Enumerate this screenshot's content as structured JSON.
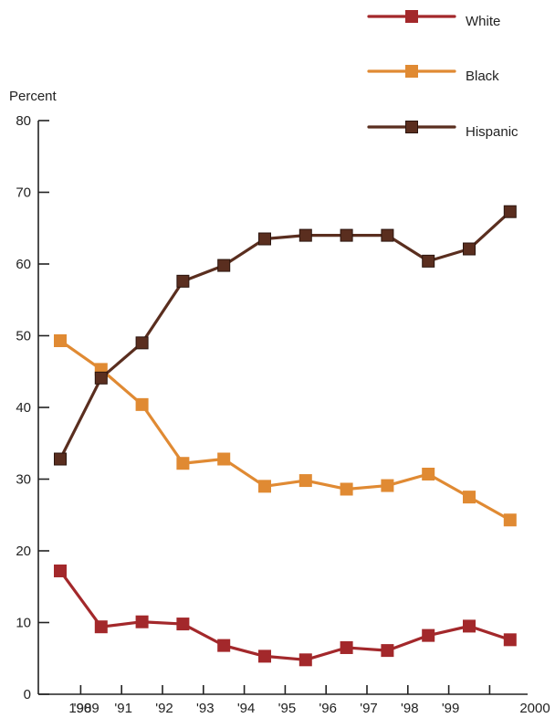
{
  "chart_data": {
    "type": "line",
    "ylabel": "Percent",
    "xlabel": "",
    "ylim": [
      0,
      80
    ],
    "yticks": [
      0,
      10,
      20,
      30,
      40,
      50,
      60,
      70,
      80
    ],
    "x_tick_labels": [
      "1989",
      "'90",
      "'91",
      "'92",
      "'93",
      "'94",
      "'95",
      "'96",
      "'97",
      "'98",
      "'99",
      "2000"
    ],
    "grid": false,
    "legend_position": "top-right",
    "series": [
      {
        "name": "White",
        "color": "#a3282b",
        "values": [
          17.2,
          9.4,
          10.1,
          9.8,
          6.8,
          5.3,
          4.8,
          6.5,
          6.1,
          8.2,
          9.5,
          7.6
        ]
      },
      {
        "name": "Black",
        "color": "#e08a33",
        "values": [
          49.3,
          45.3,
          40.4,
          32.2,
          32.8,
          29.0,
          29.8,
          28.6,
          29.1,
          30.7,
          27.5,
          24.3
        ]
      },
      {
        "name": "Hispanic",
        "color": "#5a2e1f",
        "values": [
          32.8,
          44.1,
          49.0,
          57.6,
          59.8,
          63.5,
          64.0,
          64.0,
          64.0,
          60.4,
          62.1,
          67.3
        ]
      }
    ]
  }
}
